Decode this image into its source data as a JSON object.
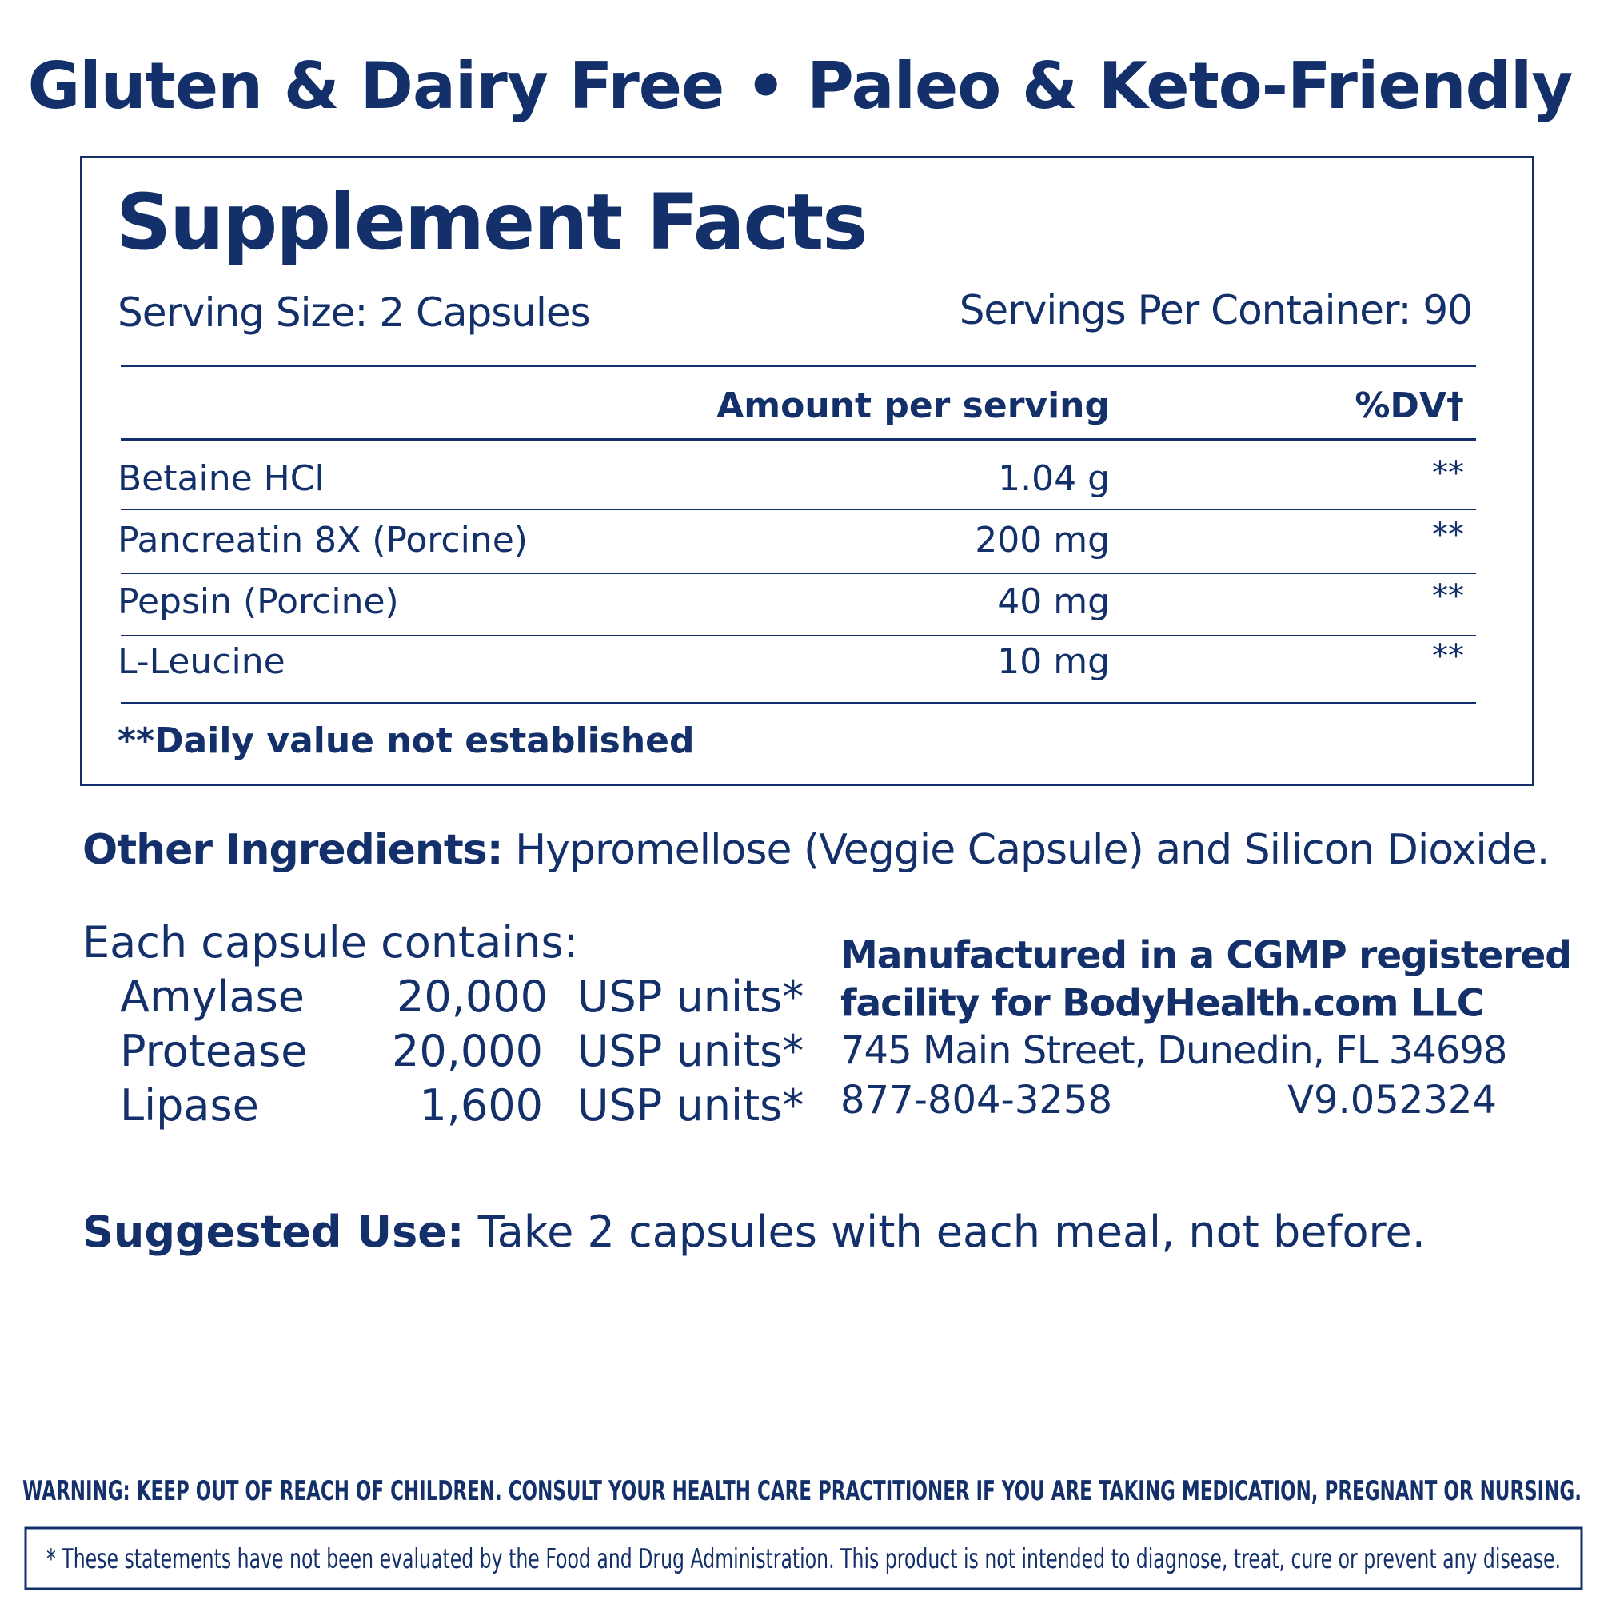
{
  "header": {
    "title": "Gluten & Dairy Free • Paleo & Keto-Friendly"
  },
  "facts": {
    "title": "Supplement Facts",
    "serving_size": "Serving Size: 2 Capsules",
    "servings_per_container": "Servings Per Container: 90",
    "columns": [
      "Amount per serving",
      "%DV†"
    ],
    "rows": [
      [
        "Betaine HCl",
        "1.04 g",
        "**"
      ],
      [
        "Pancreatin 8X (Porcine)",
        "200 mg",
        "**"
      ],
      [
        "Pepsin (Porcine)",
        "40 mg",
        "**"
      ],
      [
        "L-Leucine",
        "10 mg",
        "**"
      ]
    ],
    "footnote": "**Daily value not established"
  },
  "other_ingredients": {
    "label": "Other Ingredients:",
    "text": "Hypromellose (Veggie Capsule) and Silicon Dioxide."
  },
  "enzymes": {
    "heading": "Each capsule contains:",
    "rows": [
      [
        "Amylase",
        "20,000",
        "USP units*"
      ],
      [
        "Protease",
        "20,000",
        "USP units*"
      ],
      [
        "Lipase",
        "1,600",
        "USP units*"
      ]
    ]
  },
  "manufacturer": {
    "lines": [
      "Manufactured in a CGMP registered",
      "facility for BodyHealth.com LLC"
    ],
    "address": "745 Main Street, Dunedin, FL 34698",
    "phone": "877-804-3258",
    "version": "V9.052324"
  },
  "suggested_use": {
    "label": "Suggested Use:",
    "text": "Take 2 capsules with each meal, not before."
  },
  "warning": "WARNING: KEEP OUT OF REACH OF CHILDREN. CONSULT YOUR HEALTH CARE PRACTITIONER IF YOU ARE TAKING MEDICATION, PREGNANT OR NURSING.",
  "disclaimer": "* These statements have not been evaluated by the Food and Drug Administration. This product is not intended to diagnose, treat, cure or prevent any disease."
}
